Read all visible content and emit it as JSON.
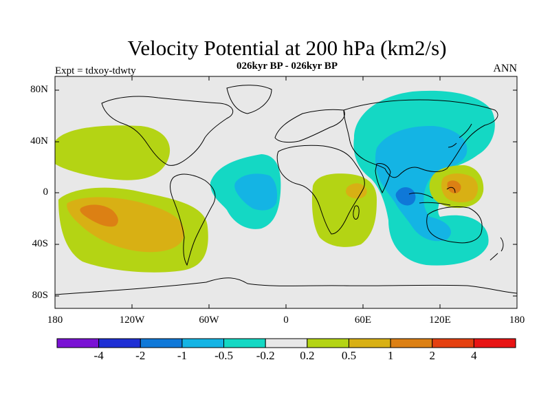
{
  "title": "Velocity Potential at 200 hPa (km2/s)",
  "subtitle": "026kyr BP - 026kyr BP",
  "experiment": "Expt = tdxoy-tdwty",
  "season": "ANN",
  "lat_labels": [
    "80N",
    "40N",
    "0",
    "40S",
    "80S"
  ],
  "lon_labels": [
    "180",
    "120W",
    "60W",
    "0",
    "60E",
    "120E",
    "180"
  ],
  "colorbar": {
    "colors": [
      "#7a12d4",
      "#1e2fd4",
      "#0f78d8",
      "#14b4e4",
      "#14d8c4",
      "#e8e8e8",
      "#b4d414",
      "#d8b014",
      "#dc8014",
      "#e44010",
      "#e81414"
    ],
    "labels": [
      "-4",
      "-2",
      "-1",
      "-0.5",
      "-0.2",
      "0.2",
      "0.5",
      "1",
      "2",
      "4"
    ]
  },
  "map_colors": {
    "ocean_land_bg": "#e8e8e8",
    "pos1": "#b4d414",
    "pos2": "#d8b014",
    "pos3": "#dc8014",
    "neg1": "#14d8c4",
    "neg2": "#14b4e4",
    "neg3": "#0f78d8"
  }
}
